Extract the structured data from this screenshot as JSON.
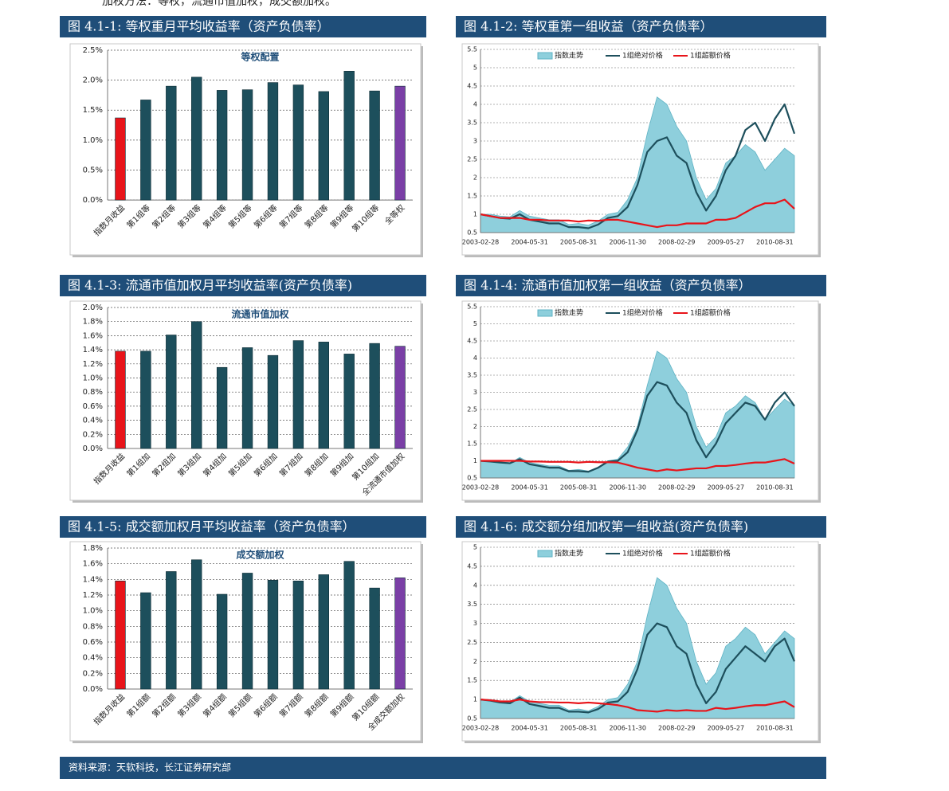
{
  "intro": "加权方法：等权，流通市值加权，成交额加权。",
  "source": "资料来源：天软科技，长江证券研究部",
  "chart_data": [
    {
      "type": "bar",
      "title": "图 4.1-1: 等权重月平均收益率（资产负债率）",
      "subtitle": "等权配置",
      "categories": [
        "指数月收益",
        "第1组等",
        "第2组等",
        "第3组等",
        "第4组等",
        "第5组等",
        "第6组等",
        "第7组等",
        "第8组等",
        "第9组等",
        "第10组等",
        "全等权"
      ],
      "values": [
        1.37,
        1.67,
        1.9,
        2.05,
        1.83,
        1.84,
        1.96,
        1.92,
        1.81,
        2.15,
        1.82,
        1.9
      ],
      "colors": [
        "#e8141a",
        "#1d4f5c",
        "#1d4f5c",
        "#1d4f5c",
        "#1d4f5c",
        "#1d4f5c",
        "#1d4f5c",
        "#1d4f5c",
        "#1d4f5c",
        "#1d4f5c",
        "#1d4f5c",
        "#7a3fa6"
      ],
      "ylim": [
        0,
        2.5
      ],
      "yticks": [
        {
          "value": 0,
          "label": "0.0%"
        },
        {
          "value": 0.5,
          "label": "0.5%"
        },
        {
          "value": 1.0,
          "label": "1.0%"
        },
        {
          "value": 1.5,
          "label": "1.5%"
        },
        {
          "value": 2.0,
          "label": "2.0%"
        },
        {
          "value": 2.5,
          "label": "2.5%"
        }
      ],
      "grid": true
    },
    {
      "type": "line",
      "title": "图 4.1-2: 等权重第一组收益（资产负债率）",
      "categories": [
        "2003-02-28",
        null,
        null,
        null,
        null,
        "2004-05-31",
        null,
        null,
        null,
        null,
        "2005-08-31",
        null,
        null,
        null,
        null,
        "2006-11-30",
        null,
        null,
        null,
        null,
        "2008-02-29",
        null,
        null,
        null,
        null,
        "2009-05-27",
        null,
        null,
        null,
        null,
        "2010-08-31",
        null,
        null
      ],
      "series": [
        {
          "name": "指数走势",
          "type": "area",
          "color": "#8ecfdc",
          "values": [
            1.0,
            1.0,
            0.95,
            0.93,
            1.1,
            0.95,
            0.9,
            0.85,
            0.85,
            0.72,
            0.75,
            0.7,
            0.82,
            1.0,
            1.05,
            1.4,
            2.0,
            3.2,
            4.2,
            4.0,
            3.4,
            3.0,
            2.0,
            1.4,
            1.7,
            2.4,
            2.6,
            2.9,
            2.7,
            2.2,
            2.5,
            2.8,
            2.6
          ]
        },
        {
          "name": "1组绝对价格",
          "type": "line",
          "color": "#1d4f5c",
          "values": [
            1.0,
            0.95,
            0.9,
            0.88,
            1.0,
            0.85,
            0.8,
            0.75,
            0.75,
            0.65,
            0.65,
            0.62,
            0.72,
            0.9,
            0.95,
            1.2,
            1.8,
            2.7,
            3.0,
            3.1,
            2.6,
            2.4,
            1.6,
            1.1,
            1.5,
            2.2,
            2.6,
            3.3,
            3.5,
            3.0,
            3.6,
            4.0,
            3.2
          ]
        },
        {
          "name": "1组超额价格",
          "type": "line",
          "color": "#e8141a",
          "values": [
            1.0,
            0.95,
            0.9,
            0.9,
            0.9,
            0.85,
            0.85,
            0.83,
            0.83,
            0.83,
            0.8,
            0.83,
            0.82,
            0.85,
            0.85,
            0.8,
            0.75,
            0.7,
            0.65,
            0.7,
            0.7,
            0.75,
            0.75,
            0.75,
            0.85,
            0.85,
            0.9,
            1.05,
            1.2,
            1.3,
            1.3,
            1.4,
            1.15
          ]
        }
      ],
      "ylim": [
        0.5,
        5.5
      ],
      "yticks": [
        0.5,
        1,
        1.5,
        2,
        2.5,
        3,
        3.5,
        4,
        4.5,
        5,
        5.5
      ],
      "grid": true,
      "legend": "top"
    },
    {
      "type": "bar",
      "title": "图 4.1-3: 流通市值加权月平均收益率(资产负债率)",
      "subtitle": "流通市值加权",
      "categories": [
        "指数月收益",
        "第1组加",
        "第2组加",
        "第3组加",
        "第4组加",
        "第5组加",
        "第6组加",
        "第7组加",
        "第8组加",
        "第9组加",
        "第10组加",
        "全流通市值加权"
      ],
      "values": [
        1.38,
        1.38,
        1.61,
        1.8,
        1.15,
        1.43,
        1.32,
        1.53,
        1.51,
        1.34,
        1.49,
        1.45
      ],
      "colors": [
        "#e8141a",
        "#1d4f5c",
        "#1d4f5c",
        "#1d4f5c",
        "#1d4f5c",
        "#1d4f5c",
        "#1d4f5c",
        "#1d4f5c",
        "#1d4f5c",
        "#1d4f5c",
        "#1d4f5c",
        "#7a3fa6"
      ],
      "ylim": [
        0,
        2.0
      ],
      "yticks": [
        {
          "value": 0,
          "label": "0.0%"
        },
        {
          "value": 0.2,
          "label": "0.2%"
        },
        {
          "value": 0.4,
          "label": "0.4%"
        },
        {
          "value": 0.6,
          "label": "0.6%"
        },
        {
          "value": 0.8,
          "label": "0.8%"
        },
        {
          "value": 1.0,
          "label": "1.0%"
        },
        {
          "value": 1.2,
          "label": "1.2%"
        },
        {
          "value": 1.4,
          "label": "1.4%"
        },
        {
          "value": 1.6,
          "label": "1.6%"
        },
        {
          "value": 1.8,
          "label": "1.8%"
        },
        {
          "value": 2.0,
          "label": "2.0%"
        }
      ],
      "grid": true
    },
    {
      "type": "line",
      "title": "图 4.1-4: 流通市值加权第一组收益（资产负债率）",
      "categories": [
        "2003-02-28",
        null,
        null,
        null,
        null,
        "2004-05-31",
        null,
        null,
        null,
        null,
        "2005-08-31",
        null,
        null,
        null,
        null,
        "2006-11-30",
        null,
        null,
        null,
        null,
        "2008-02-29",
        null,
        null,
        null,
        null,
        "2009-05-27",
        null,
        null,
        null,
        null,
        "2010-08-31",
        null,
        null
      ],
      "series": [
        {
          "name": "指数走势",
          "type": "area",
          "color": "#8ecfdc",
          "values": [
            1.0,
            1.0,
            0.95,
            0.93,
            1.1,
            0.95,
            0.9,
            0.85,
            0.85,
            0.72,
            0.75,
            0.7,
            0.82,
            1.0,
            1.05,
            1.4,
            2.0,
            3.2,
            4.2,
            4.0,
            3.4,
            3.0,
            2.0,
            1.4,
            1.7,
            2.4,
            2.6,
            2.9,
            2.7,
            2.2,
            2.5,
            2.8,
            2.6
          ]
        },
        {
          "name": "1组绝对价格",
          "type": "line",
          "color": "#1d4f5c",
          "values": [
            1.0,
            0.98,
            0.95,
            0.93,
            1.05,
            0.9,
            0.85,
            0.8,
            0.8,
            0.7,
            0.7,
            0.68,
            0.8,
            0.98,
            1.0,
            1.25,
            1.9,
            2.9,
            3.3,
            3.2,
            2.7,
            2.4,
            1.6,
            1.1,
            1.5,
            2.1,
            2.4,
            2.7,
            2.6,
            2.2,
            2.7,
            3.0,
            2.6
          ]
        },
        {
          "name": "1组超额价格",
          "type": "line",
          "color": "#e8141a",
          "values": [
            1.0,
            1.0,
            1.0,
            1.0,
            1.0,
            0.98,
            0.98,
            0.97,
            0.97,
            0.97,
            0.95,
            0.97,
            0.96,
            0.96,
            0.95,
            0.88,
            0.8,
            0.75,
            0.7,
            0.75,
            0.72,
            0.75,
            0.78,
            0.78,
            0.85,
            0.85,
            0.88,
            0.92,
            0.95,
            0.95,
            1.0,
            1.05,
            0.92
          ]
        }
      ],
      "ylim": [
        0.5,
        5.5
      ],
      "yticks": [
        0.5,
        1,
        1.5,
        2,
        2.5,
        3,
        3.5,
        4,
        4.5,
        5,
        5.5
      ],
      "grid": true,
      "legend": "top"
    },
    {
      "type": "bar",
      "title": "图 4.1-5: 成交额加权月平均收益率（资产负债率）",
      "subtitle": "成交额加权",
      "categories": [
        "指数月收益",
        "第1组额",
        "第2组额",
        "第3组额",
        "第4组额",
        "第5组额",
        "第6组额",
        "第7组额",
        "第8组额",
        "第9组额",
        "第10组额",
        "全成交额加权"
      ],
      "values": [
        1.38,
        1.23,
        1.5,
        1.65,
        1.21,
        1.48,
        1.39,
        1.38,
        1.46,
        1.63,
        1.29,
        1.42
      ],
      "colors": [
        "#e8141a",
        "#1d4f5c",
        "#1d4f5c",
        "#1d4f5c",
        "#1d4f5c",
        "#1d4f5c",
        "#1d4f5c",
        "#1d4f5c",
        "#1d4f5c",
        "#1d4f5c",
        "#1d4f5c",
        "#7a3fa6"
      ],
      "ylim": [
        0,
        1.8
      ],
      "yticks": [
        {
          "value": 0,
          "label": "0.0%"
        },
        {
          "value": 0.2,
          "label": "0.2%"
        },
        {
          "value": 0.4,
          "label": "0.4%"
        },
        {
          "value": 0.6,
          "label": "0.6%"
        },
        {
          "value": 0.8,
          "label": "0.8%"
        },
        {
          "value": 1.0,
          "label": "1.0%"
        },
        {
          "value": 1.2,
          "label": "1.2%"
        },
        {
          "value": 1.4,
          "label": "1.4%"
        },
        {
          "value": 1.6,
          "label": "1.6%"
        },
        {
          "value": 1.8,
          "label": "1.8%"
        }
      ],
      "grid": true
    },
    {
      "type": "line",
      "title": "图 4.1-6: 成交额分组加权第一组收益(资产负债率)",
      "categories": [
        "2003-02-28",
        null,
        null,
        null,
        null,
        "2004-05-31",
        null,
        null,
        null,
        null,
        "2005-08-31",
        null,
        null,
        null,
        null,
        "2006-11-30",
        null,
        null,
        null,
        null,
        "2008-02-29",
        null,
        null,
        null,
        null,
        "2009-05-27",
        null,
        null,
        null,
        null,
        "2010-08-31",
        null,
        null
      ],
      "series": [
        {
          "name": "指数走势",
          "type": "area",
          "color": "#8ecfdc",
          "values": [
            1.0,
            1.0,
            0.95,
            0.93,
            1.1,
            0.95,
            0.9,
            0.85,
            0.85,
            0.72,
            0.75,
            0.7,
            0.82,
            1.0,
            1.05,
            1.4,
            2.0,
            3.2,
            4.2,
            4.0,
            3.4,
            3.0,
            2.0,
            1.4,
            1.7,
            2.4,
            2.6,
            2.9,
            2.7,
            2.2,
            2.5,
            2.8,
            2.6
          ]
        },
        {
          "name": "1组绝对价格",
          "type": "line",
          "color": "#1d4f5c",
          "values": [
            1.0,
            0.97,
            0.92,
            0.9,
            1.05,
            0.88,
            0.83,
            0.78,
            0.78,
            0.68,
            0.68,
            0.66,
            0.75,
            0.92,
            0.95,
            1.2,
            1.8,
            2.7,
            3.0,
            2.9,
            2.4,
            2.2,
            1.4,
            0.9,
            1.2,
            1.8,
            2.1,
            2.4,
            2.2,
            2.0,
            2.4,
            2.6,
            2.0
          ]
        },
        {
          "name": "1组超额价格",
          "type": "line",
          "color": "#e8141a",
          "values": [
            1.0,
            0.98,
            0.95,
            0.95,
            1.0,
            0.95,
            0.93,
            0.93,
            0.92,
            0.92,
            0.9,
            0.92,
            0.9,
            0.88,
            0.85,
            0.8,
            0.72,
            0.7,
            0.68,
            0.72,
            0.7,
            0.72,
            0.7,
            0.7,
            0.78,
            0.75,
            0.78,
            0.82,
            0.85,
            0.85,
            0.9,
            0.95,
            0.8
          ]
        }
      ],
      "ylim": [
        0.5,
        5
      ],
      "yticks": [
        0.5,
        1,
        1.5,
        2,
        2.5,
        3,
        3.5,
        4,
        4.5,
        5
      ],
      "grid": true,
      "legend": "top"
    }
  ]
}
